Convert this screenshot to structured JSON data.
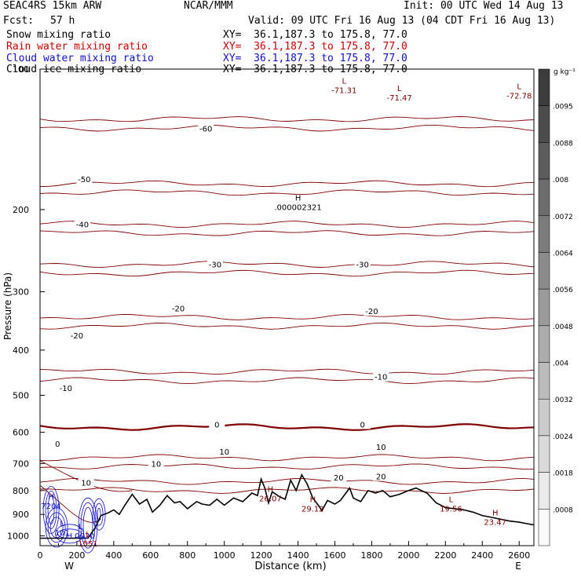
{
  "header": {
    "model": "SEAC4RS 15km ARW",
    "center": "NCAR/MMM",
    "init": "Init: 00 UTC Wed 14 Aug 13",
    "fcst_label": "Fcst:",
    "fcst_value": "57 h",
    "valid": "Valid: 09 UTC Fri 16 Aug 13 (04 CDT Fri 16 Aug 13)"
  },
  "legend": [
    {
      "label": "Snow mixing ratio",
      "xy": "XY=  36.1,187.3 to 175.8, 77.0",
      "color": "#000000"
    },
    {
      "label": "Rain water mixing ratio",
      "xy": "XY=  36.1,187.3 to 175.8, 77.0",
      "color": "#cc0000"
    },
    {
      "label": "Cloud water mixing ratio",
      "xy": "XY=  36.1,187.3 to 175.8, 77.0",
      "color": "#1010cc"
    },
    {
      "label": "Cloud ice mixing ratio",
      "xy": "XY=  36.1,187.3 to 175.8, 77.0",
      "color": "#000000"
    }
  ],
  "chart_data": {
    "type": "cross-section",
    "xlabel": "Distance (km)",
    "ylabel": "Pressure (hPa)",
    "x_ticks": [
      0,
      200,
      400,
      600,
      800,
      1000,
      1200,
      1400,
      1600,
      1800,
      2000,
      2200,
      2400,
      2600
    ],
    "y_ticks": [
      100,
      200,
      300,
      400,
      500,
      600,
      700,
      800,
      900,
      1000
    ],
    "xlim": [
      0,
      2680
    ],
    "ylim": [
      1050,
      100
    ],
    "y_scale": "log",
    "end_labels": {
      "left": "W",
      "right": "E"
    },
    "colorbar": {
      "unit": "g kg⁻¹",
      "ticks": [
        ".0095",
        ".0088",
        ".008",
        ".0072",
        ".0064",
        ".0056",
        ".0048",
        ".004",
        ".0032",
        ".0024",
        ".0018",
        ".0008"
      ]
    },
    "temperature_contours": [
      {
        "value": -60,
        "p": 128
      },
      {
        "value": -50,
        "p": 176
      },
      {
        "value": -40,
        "p": 215
      },
      {
        "value": -30,
        "p": 262
      },
      {
        "value": -20,
        "p": 340
      },
      {
        "value": -10,
        "p": 445
      },
      {
        "value": 0,
        "p": 585,
        "bold": true
      },
      {
        "value": 10,
        "p": 680
      },
      {
        "value": 20,
        "p": 765
      }
    ],
    "contour_labels": [
      {
        "text": "-60",
        "x": 900,
        "p": 134
      },
      {
        "text": "-50",
        "x": 240,
        "p": 172
      },
      {
        "text": "-40",
        "x": 230,
        "p": 215
      },
      {
        "text": "-30",
        "x": 950,
        "p": 262
      },
      {
        "text": "-30",
        "x": 1750,
        "p": 262
      },
      {
        "text": "-20",
        "x": 750,
        "p": 325
      },
      {
        "text": "-20",
        "x": 1800,
        "p": 330
      },
      {
        "text": "-20",
        "x": 200,
        "p": 372
      },
      {
        "text": "-10",
        "x": 140,
        "p": 482
      },
      {
        "text": "-10",
        "x": 1850,
        "p": 456
      },
      {
        "text": "0",
        "x": 95,
        "p": 635
      },
      {
        "text": "0",
        "x": 960,
        "p": 577
      },
      {
        "text": "0",
        "x": 1750,
        "p": 577
      },
      {
        "text": "10",
        "x": 1000,
        "p": 660
      },
      {
        "text": "10",
        "x": 1850,
        "p": 645
      },
      {
        "text": "10",
        "x": 630,
        "p": 700
      },
      {
        "text": "10",
        "x": 250,
        "p": 768
      },
      {
        "text": "20",
        "x": 1620,
        "p": 750
      },
      {
        "text": "20",
        "x": 1850,
        "p": 745
      }
    ],
    "extrema": [
      {
        "kind": "H",
        "value": ".000002321",
        "x": 1400,
        "p": 196,
        "color": "#000000"
      },
      {
        "kind": "L",
        "value": "-71.31",
        "x": 1650,
        "p": 110,
        "color": "#800000"
      },
      {
        "kind": "L",
        "value": "-71.47",
        "x": 1950,
        "p": 114,
        "color": "#800000"
      },
      {
        "kind": "L",
        "value": "-72.78",
        "x": 2600,
        "p": 113,
        "color": "#800000"
      },
      {
        "kind": "H",
        "value": "26.07",
        "x": 1250,
        "p": 825,
        "color": "#800000"
      },
      {
        "kind": "H",
        "value": "29.12",
        "x": 1480,
        "p": 866,
        "color": "#800000"
      },
      {
        "kind": "L",
        "value": "19.56",
        "x": 2230,
        "p": 866,
        "color": "#800000"
      },
      {
        "kind": "H",
        "value": "23.47",
        "x": 2470,
        "p": 925,
        "color": "#800000"
      },
      {
        "kind": "H",
        "value": "7204",
        "x": 60,
        "p": 855,
        "color": "#1010cc"
      },
      {
        "kind": "L",
        "value": "101",
        "x": 120,
        "p": 975,
        "color": "#1010cc"
      },
      {
        "kind": "L",
        "value": "H.0020",
        "x": 220,
        "p": 990,
        "color": "#1010cc"
      },
      {
        "kind": "L",
        "value": "1551",
        "x": 260,
        "p": 1030,
        "color": "#cc0000"
      }
    ],
    "terrain": [
      [
        0,
        1012
      ],
      [
        100,
        1012
      ],
      [
        260,
        1012
      ],
      [
        300,
        960
      ],
      [
        330,
        905
      ],
      [
        370,
        893
      ],
      [
        400,
        880
      ],
      [
        430,
        900
      ],
      [
        460,
        860
      ],
      [
        500,
        815
      ],
      [
        540,
        855
      ],
      [
        580,
        835
      ],
      [
        610,
        890
      ],
      [
        650,
        860
      ],
      [
        690,
        820
      ],
      [
        730,
        850
      ],
      [
        760,
        845
      ],
      [
        800,
        875
      ],
      [
        850,
        845
      ],
      [
        880,
        855
      ],
      [
        920,
        860
      ],
      [
        960,
        835
      ],
      [
        1000,
        860
      ],
      [
        1050,
        830
      ],
      [
        1100,
        845
      ],
      [
        1150,
        810
      ],
      [
        1180,
        820
      ],
      [
        1200,
        756
      ],
      [
        1220,
        790
      ],
      [
        1240,
        850
      ],
      [
        1260,
        805
      ],
      [
        1300,
        825
      ],
      [
        1330,
        835
      ],
      [
        1360,
        760
      ],
      [
        1390,
        800
      ],
      [
        1420,
        740
      ],
      [
        1450,
        775
      ],
      [
        1480,
        830
      ],
      [
        1510,
        860
      ],
      [
        1530,
        883
      ],
      [
        1560,
        840
      ],
      [
        1600,
        855
      ],
      [
        1630,
        840
      ],
      [
        1680,
        790
      ],
      [
        1700,
        830
      ],
      [
        1740,
        845
      ],
      [
        1780,
        800
      ],
      [
        1820,
        810
      ],
      [
        1860,
        800
      ],
      [
        1900,
        825
      ],
      [
        1950,
        815
      ],
      [
        2000,
        800
      ],
      [
        2040,
        790
      ],
      [
        2100,
        810
      ],
      [
        2150,
        850
      ],
      [
        2200,
        870
      ],
      [
        2250,
        875
      ],
      [
        2300,
        880
      ],
      [
        2350,
        890
      ],
      [
        2400,
        905
      ],
      [
        2450,
        913
      ],
      [
        2500,
        922
      ],
      [
        2550,
        930
      ],
      [
        2600,
        935
      ],
      [
        2680,
        948
      ]
    ]
  }
}
